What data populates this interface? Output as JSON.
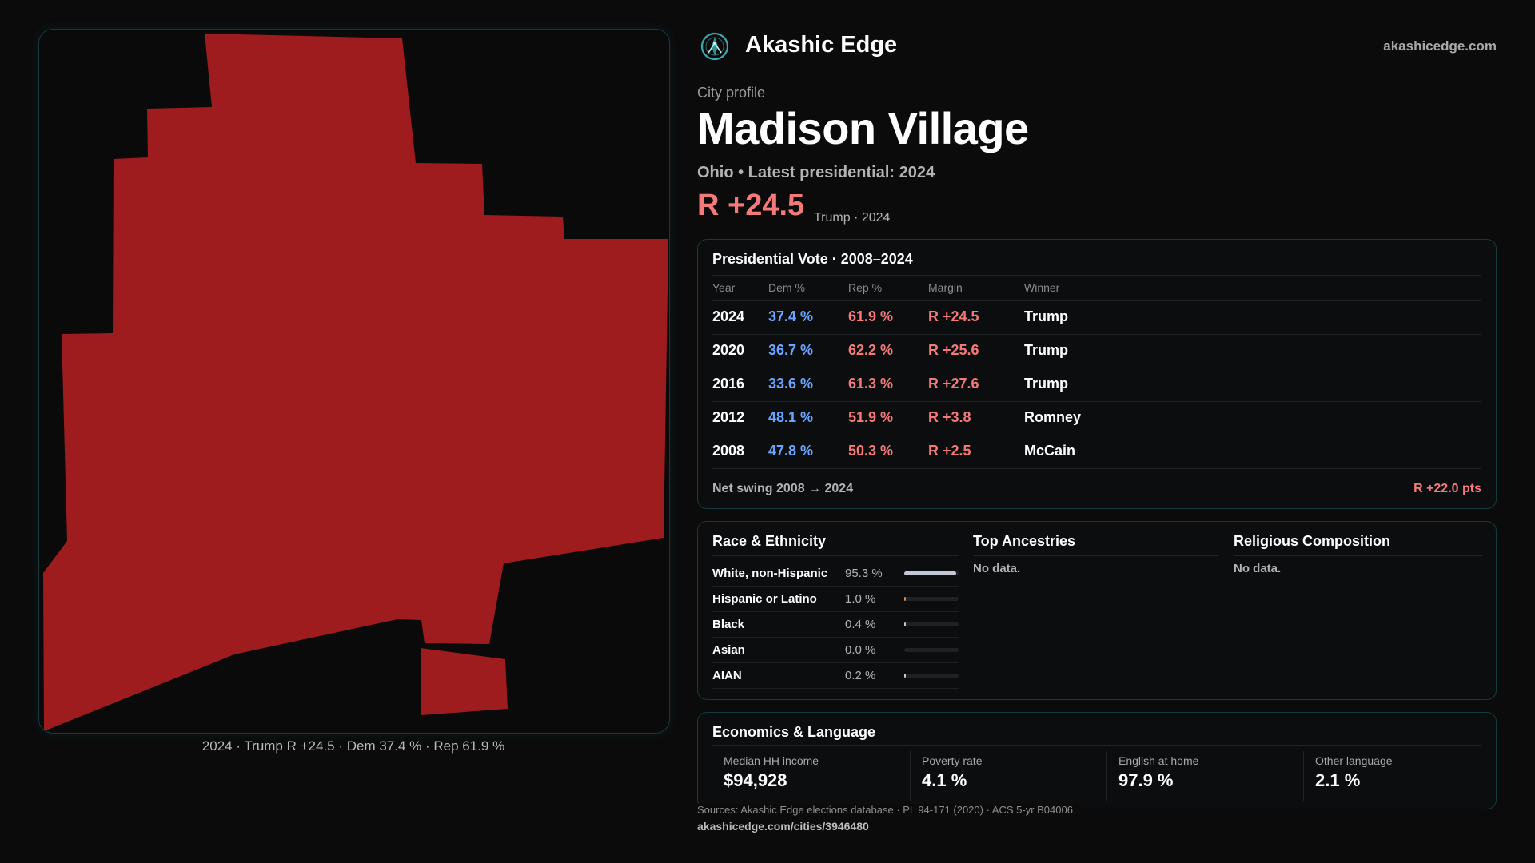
{
  "colors": {
    "rep": "#9e1b1e",
    "rep_text": "#f47a7a",
    "dem_text": "#6aa6ff",
    "accent": "#3aa9b0"
  },
  "map": {
    "caption": "2024 · Trump R +24.5 · Dem 37.4 % · Rep 61.9 %"
  },
  "header": {
    "brand": "Akashic Edge",
    "site": "akashicedge.com",
    "logo_icon": "compass-logo-icon"
  },
  "profile": {
    "kicker": "City profile",
    "title": "Madison Village",
    "subtitle": "Ohio • Latest presidential: 2024",
    "margin": "R +24.5",
    "margin_note": "Trump · 2024"
  },
  "vote_table": {
    "title": "Presidential Vote · 2008–2024",
    "headers": {
      "year": "Year",
      "dem": "Dem %",
      "rep": "Rep %",
      "margin": "Margin",
      "winner": "Winner"
    },
    "rows": [
      {
        "year": "2024",
        "dem": "37.4 %",
        "rep": "61.9 %",
        "margin": "R +24.5",
        "winner": "Trump"
      },
      {
        "year": "2020",
        "dem": "36.7 %",
        "rep": "62.2 %",
        "margin": "R +25.6",
        "winner": "Trump"
      },
      {
        "year": "2016",
        "dem": "33.6 %",
        "rep": "61.3 %",
        "margin": "R +27.6",
        "winner": "Trump"
      },
      {
        "year": "2012",
        "dem": "48.1 %",
        "rep": "51.9 %",
        "margin": "R +3.8",
        "winner": "Romney"
      },
      {
        "year": "2008",
        "dem": "47.8 %",
        "rep": "50.3 %",
        "margin": "R +2.5",
        "winner": "McCain"
      }
    ],
    "swing_label": "Net swing 2008 → 2024",
    "swing_value": "R +22.0 pts"
  },
  "race": {
    "title": "Race & Ethnicity",
    "rows": [
      {
        "name": "White, non-Hispanic",
        "pct": "95.3 %",
        "value": 95.3,
        "color": "#c4c8d4"
      },
      {
        "name": "Hispanic or Latino",
        "pct": "1.0 %",
        "value": 1.0,
        "color": "#e0873a"
      },
      {
        "name": "Black",
        "pct": "0.4 %",
        "value": 0.4,
        "color": "#c4c8d4"
      },
      {
        "name": "Asian",
        "pct": "0.0 %",
        "value": 0.0,
        "color": "#c4c8d4"
      },
      {
        "name": "AIAN",
        "pct": "0.2 %",
        "value": 0.2,
        "color": "#c4c8d4"
      }
    ]
  },
  "ancestries": {
    "title": "Top Ancestries",
    "empty": "No data."
  },
  "religion": {
    "title": "Religious Composition",
    "empty": "No data."
  },
  "economics": {
    "title": "Economics & Language",
    "cells": [
      {
        "label": "Median HH income",
        "value": "$94,928"
      },
      {
        "label": "Poverty rate",
        "value": "4.1 %"
      },
      {
        "label": "English at home",
        "value": "97.9 %"
      },
      {
        "label": "Other language",
        "value": "2.1 %"
      }
    ]
  },
  "footer": {
    "sources": "Sources: Akashic Edge elections database · PL 94-171 (2020) · ACS 5-yr B04006",
    "url": "akashicedge.com/cities/3946480"
  }
}
